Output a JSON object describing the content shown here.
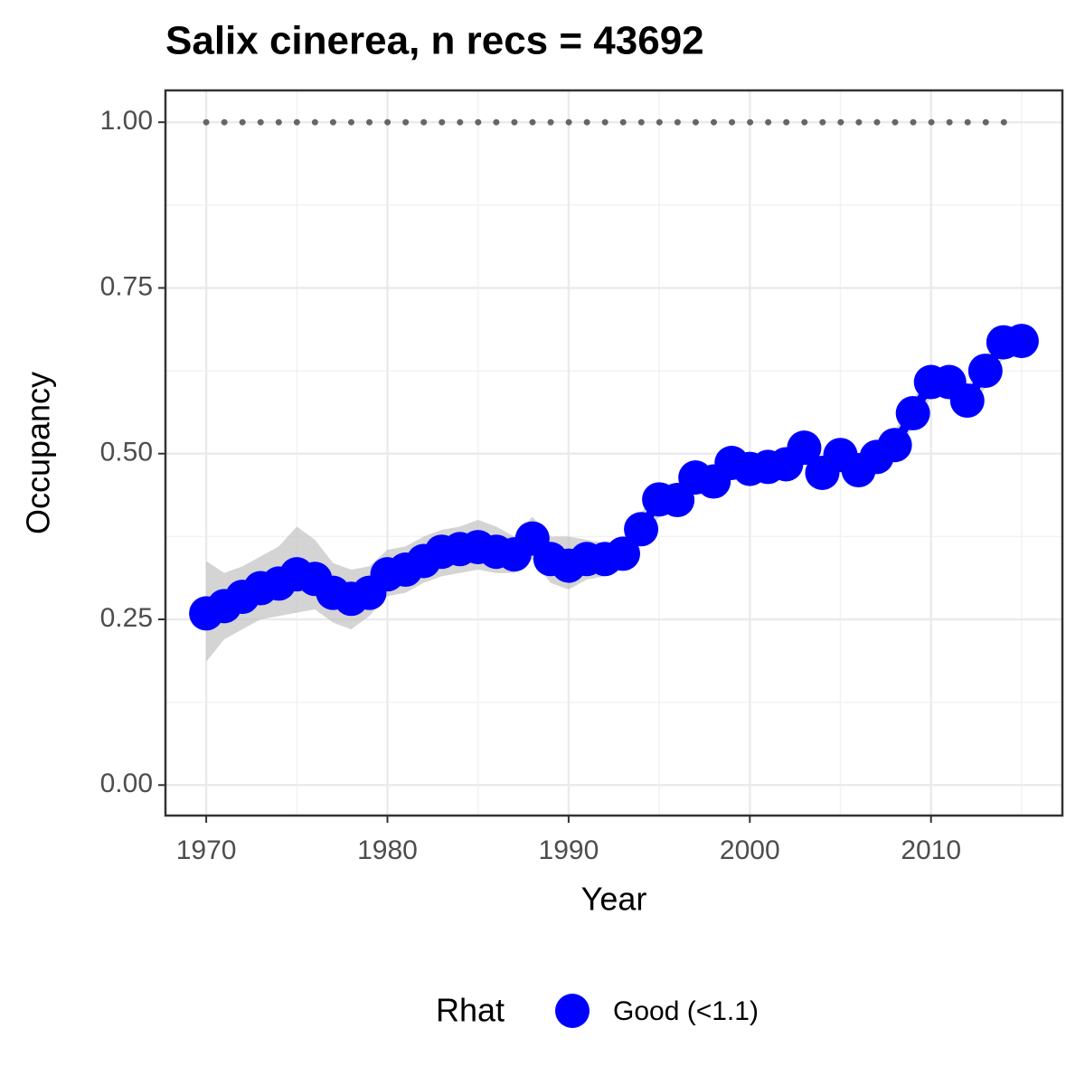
{
  "chart_data": {
    "type": "line",
    "title": "Salix cinerea, n recs = 43692",
    "x_label": "Year",
    "y_label": "Occupancy",
    "legend_title": "Rhat",
    "legend_position": "bottom",
    "grid": true,
    "xlim": [
      1967.75,
      2017.25
    ],
    "ylim": [
      -0.046,
      1.048
    ],
    "xticks": [
      1970,
      1980,
      1990,
      2000,
      2010
    ],
    "yticks": [
      {
        "value": 0,
        "label": "0.00"
      },
      {
        "value": 0.25,
        "label": "0.25"
      },
      {
        "value": 0.5,
        "label": "0.50"
      },
      {
        "value": 0.75,
        "label": "0.75"
      },
      {
        "value": 1,
        "label": "1.00"
      }
    ],
    "reference_line": {
      "y": 1,
      "x": [
        1970,
        2015
      ],
      "color": "#666666"
    },
    "x": [
      1970,
      1971,
      1972,
      1973,
      1974,
      1975,
      1976,
      1977,
      1978,
      1979,
      1980,
      1981,
      1982,
      1983,
      1984,
      1985,
      1986,
      1987,
      1988,
      1989,
      1990,
      1991,
      1992,
      1993,
      1994,
      1995,
      1996,
      1997,
      1998,
      1999,
      2000,
      2001,
      2002,
      2003,
      2004,
      2005,
      2006,
      2007,
      2008,
      2009,
      2010,
      2011,
      2012,
      2013,
      2014,
      2015
    ],
    "series": [
      {
        "name": "Good (<1.1)",
        "color": "#0000ff",
        "band_color": "#bdbdbd",
        "values": [
          0.259,
          0.27,
          0.284,
          0.297,
          0.304,
          0.318,
          0.311,
          0.29,
          0.281,
          0.29,
          0.318,
          0.325,
          0.338,
          0.352,
          0.356,
          0.359,
          0.352,
          0.348,
          0.372,
          0.341,
          0.331,
          0.341,
          0.341,
          0.349,
          0.386,
          0.431,
          0.43,
          0.464,
          0.458,
          0.486,
          0.477,
          0.48,
          0.484,
          0.509,
          0.471,
          0.498,
          0.475,
          0.495,
          0.513,
          0.561,
          0.608,
          0.608,
          0.58,
          0.625,
          0.668,
          0.67
        ],
        "lower": [
          0.186,
          0.22,
          0.235,
          0.25,
          0.255,
          0.26,
          0.265,
          0.245,
          0.235,
          0.255,
          0.285,
          0.29,
          0.305,
          0.315,
          0.32,
          0.325,
          0.32,
          0.32,
          0.34,
          0.305,
          0.295,
          0.31,
          0.315,
          0.325,
          0.365,
          0.405,
          0.41,
          0.445,
          0.44,
          0.465,
          0.46,
          0.46,
          0.465,
          0.49,
          0.45,
          0.48,
          0.455,
          0.475,
          0.495,
          0.54,
          0.585,
          0.585,
          0.56,
          0.6,
          0.645,
          0.645
        ],
        "upper": [
          0.338,
          0.32,
          0.33,
          0.345,
          0.36,
          0.39,
          0.37,
          0.335,
          0.325,
          0.33,
          0.355,
          0.36,
          0.375,
          0.385,
          0.39,
          0.4,
          0.39,
          0.375,
          0.405,
          0.375,
          0.375,
          0.37,
          0.365,
          0.37,
          0.41,
          0.455,
          0.455,
          0.485,
          0.48,
          0.505,
          0.495,
          0.5,
          0.505,
          0.53,
          0.49,
          0.52,
          0.495,
          0.515,
          0.535,
          0.58,
          0.63,
          0.63,
          0.6,
          0.645,
          0.69,
          0.695
        ]
      }
    ]
  }
}
